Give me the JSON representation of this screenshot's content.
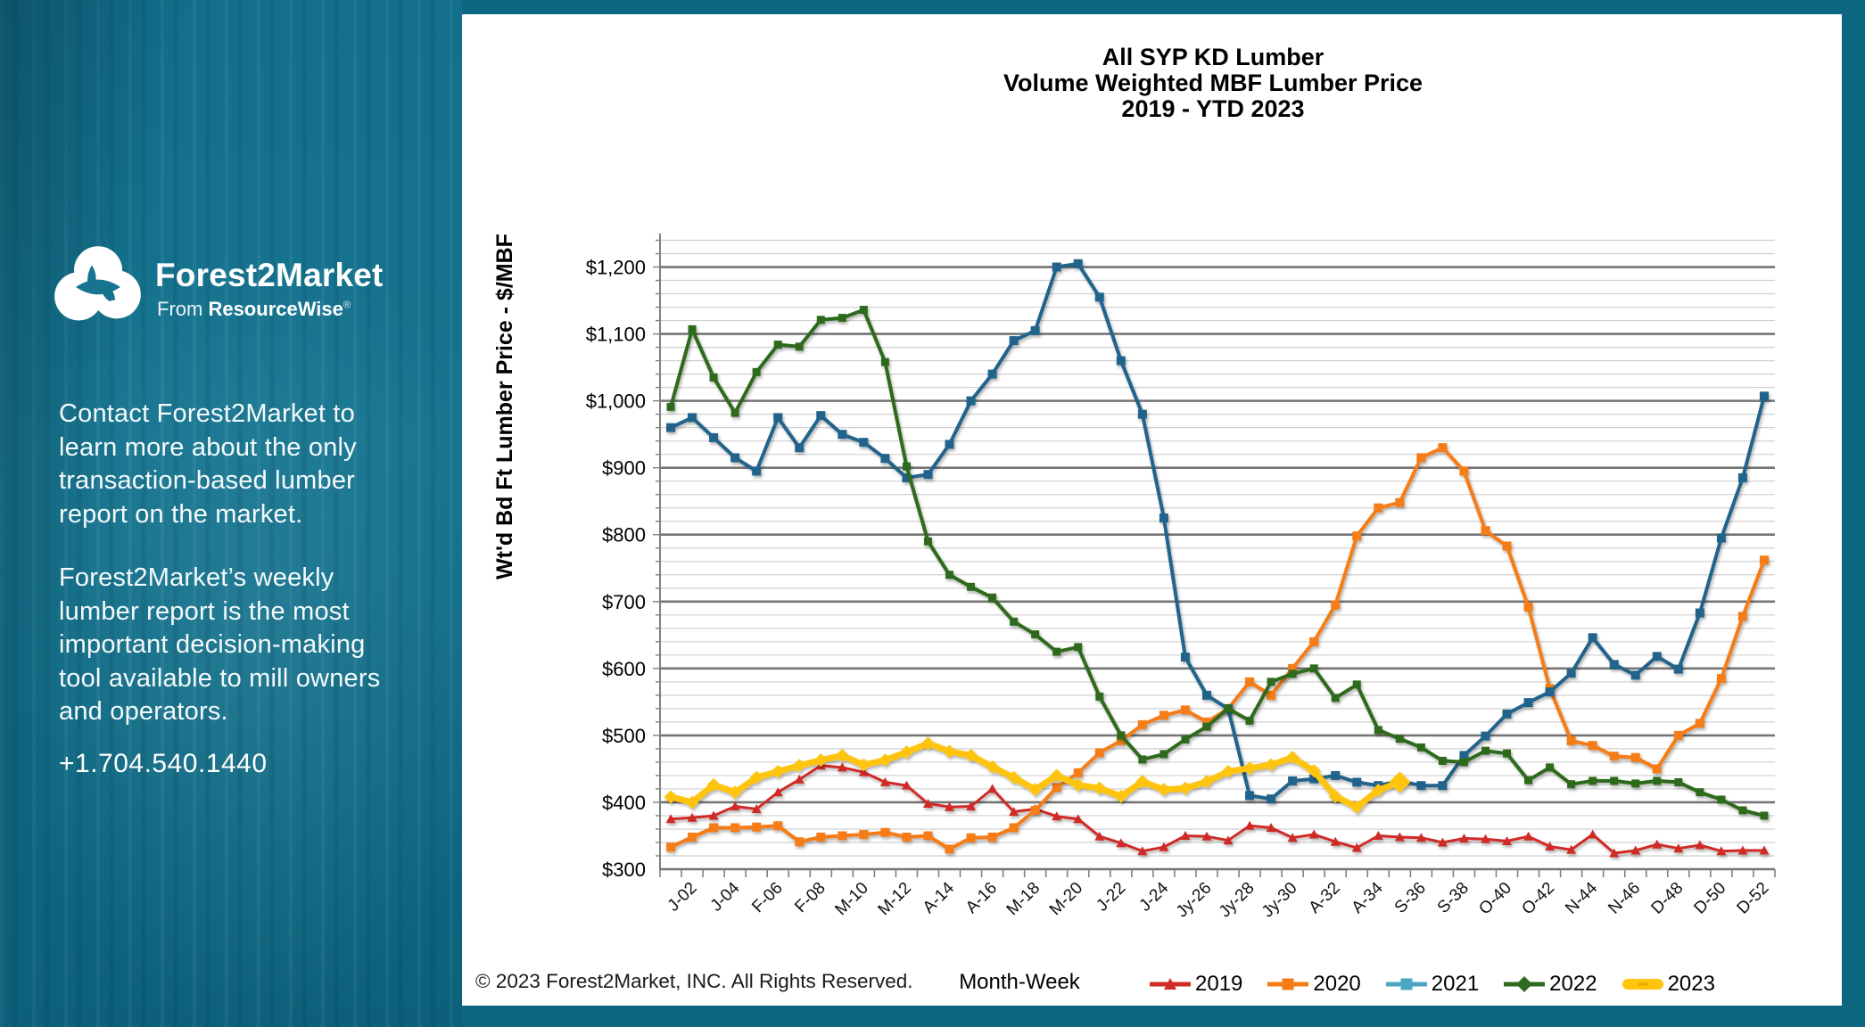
{
  "colors": {
    "background_teal": "#0E6780",
    "panel_white": "#FFFFFF",
    "sidebar_text": "#F4FAFC",
    "grid_minor": "#D0D0D0",
    "grid_major": "#757575",
    "axis": "#808080"
  },
  "sidebar": {
    "logo": {
      "brand": "Forest2Market",
      "sub_prefix": "From ",
      "sub_brand": "ResourceWise",
      "registered": "®"
    },
    "paragraph1_lines": [
      "Contact Forest2Market to",
      "learn more about the only",
      "transaction-based lumber",
      "report on the market."
    ],
    "paragraph2_lines": [
      "Forest2Market’s weekly",
      "lumber report is the most",
      "important decision-making",
      "tool available to mill owners",
      "and operators."
    ],
    "phone": "+1.704.540.1440"
  },
  "panel": {
    "title_line1": "All SYP KD Lumber",
    "title_line2": "Volume Weighted MBF Lumber Price",
    "title_line3": "2019 - YTD 2023",
    "copyright": "© 2023 Forest2Market, INC. All Rights Reserved.",
    "x_axis_title": "Month-Week",
    "y_axis_title": "Wt'd Bd Ft Lumber Price - $/MBF"
  },
  "chart_data": {
    "type": "line",
    "title": "All SYP KD Lumber Volume Weighted MBF Lumber Price 2019 - YTD 2023",
    "xlabel": "Month-Week",
    "ylabel": "Wt'd Bd Ft Lumber Price - $/MBF",
    "ylim": [
      300,
      1250
    ],
    "y_major_step": 100,
    "y_minor_step": 20,
    "grid": true,
    "legend_position": "bottom",
    "weeks": 52,
    "x_tick_labels": [
      "J-02",
      "J-04",
      "F-06",
      "F-08",
      "M-10",
      "M-12",
      "A-14",
      "A-16",
      "M-18",
      "M-20",
      "J-22",
      "J-24",
      "Jy-26",
      "Jy-28",
      "Jy-30",
      "A-32",
      "A-34",
      "S-36",
      "S-38",
      "O-40",
      "O-42",
      "N-44",
      "N-46",
      "D-48",
      "D-50",
      "D-52"
    ],
    "x_tick_weeks": [
      2,
      4,
      6,
      8,
      10,
      12,
      14,
      16,
      18,
      20,
      22,
      24,
      26,
      28,
      30,
      32,
      34,
      36,
      38,
      40,
      42,
      44,
      46,
      48,
      50,
      52
    ],
    "series": [
      {
        "name": "2019",
        "color": "#D02B27",
        "marker": "triangle",
        "line_width": 3,
        "marker_size": 9,
        "values": [
          375,
          377,
          380,
          394,
          390,
          415,
          434,
          455,
          452,
          445,
          430,
          425,
          398,
          393,
          394,
          420,
          386,
          390,
          379,
          375,
          349,
          339,
          327,
          333,
          350,
          349,
          343,
          365,
          362,
          347,
          352,
          341,
          332,
          350,
          348,
          347,
          340,
          346,
          345,
          342,
          349,
          334,
          329,
          352,
          324,
          328,
          337,
          331,
          336,
          327,
          328,
          328
        ]
      },
      {
        "name": "2020",
        "color": "#F57C14",
        "marker": "square",
        "line_width": 4,
        "marker_size": 10,
        "values": [
          333,
          348,
          362,
          362,
          363,
          365,
          341,
          348,
          350,
          352,
          355,
          348,
          350,
          330,
          347,
          348,
          362,
          388,
          422,
          444,
          474,
          492,
          516,
          530,
          538,
          520,
          540,
          580,
          560,
          600,
          640,
          695,
          798,
          840,
          848,
          915,
          930,
          895,
          806,
          783,
          692,
          570,
          492,
          485,
          469,
          467,
          450,
          500,
          518,
          585,
          678,
          762
        ]
      },
      {
        "name": "2021",
        "color": "#20648C",
        "legend_color": "#4BA6C4",
        "marker": "square",
        "line_width": 4,
        "marker_size": 10,
        "values": [
          960,
          975,
          945,
          915,
          895,
          975,
          930,
          978,
          950,
          938,
          914,
          885,
          890,
          935,
          1000,
          1040,
          1090,
          1105,
          1200,
          1205,
          1155,
          1060,
          980,
          825,
          617,
          560,
          540,
          410,
          405,
          432,
          435,
          440,
          430,
          425,
          432,
          425,
          425,
          470,
          499,
          532,
          549,
          565,
          593,
          646,
          606,
          590,
          618,
          599,
          683,
          795,
          885,
          1007
        ]
      },
      {
        "name": "2022",
        "color": "#2F6A1F",
        "marker": "square",
        "legend_marker": "diamond",
        "line_width": 4,
        "marker_size": 9,
        "values": [
          991,
          1107,
          1035,
          982,
          1043,
          1084,
          1081,
          1121,
          1124,
          1136,
          1058,
          902,
          790,
          740,
          722,
          706,
          670,
          651,
          625,
          632,
          558,
          500,
          464,
          472,
          494,
          513,
          540,
          522,
          580,
          592,
          600,
          556,
          576,
          508,
          495,
          482,
          462,
          460,
          477,
          473,
          433,
          452,
          427,
          432,
          432,
          428,
          432,
          430,
          415,
          404,
          388,
          380
        ]
      },
      {
        "name": "2023",
        "color": "#FFC40C",
        "marker": "diamond",
        "line_width": 7,
        "marker_size": 15,
        "last_point_size": 24,
        "values": [
          408,
          400,
          426,
          415,
          437,
          446,
          455,
          463,
          470,
          456,
          463,
          475,
          488,
          476,
          470,
          453,
          437,
          419,
          440,
          426,
          421,
          409,
          431,
          419,
          421,
          431,
          446,
          451,
          456,
          467,
          447,
          409,
          393,
          418,
          430,
          null,
          null,
          null,
          null,
          null,
          null,
          null,
          null,
          null,
          null,
          null,
          null,
          null,
          null,
          null,
          null,
          null
        ]
      }
    ]
  }
}
